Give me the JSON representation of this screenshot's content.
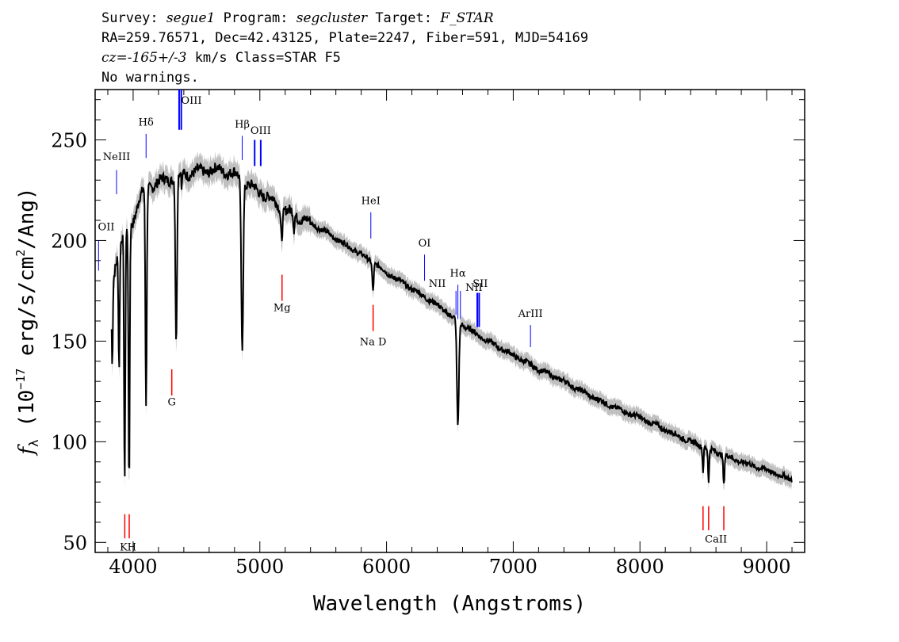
{
  "header": {
    "line1": {
      "survey_label": "Survey: ",
      "survey": "segue1",
      "program_label": " Program: ",
      "program": "segcluster",
      "target_label": " Target: ",
      "target": "F_STAR"
    },
    "line2": "RA=259.76571, Dec=42.43125, Plate=2247, Fiber=591, MJD=54169",
    "line3": {
      "cz": "cz=-165+/-3",
      "rest": " km/s Class=STAR F5"
    },
    "line4": "No warnings."
  },
  "chart_data": {
    "type": "line",
    "xlabel": "Wavelength (Angstroms)",
    "ylabel": {
      "f": "f",
      "sub": "λ",
      "pre": " (10",
      "exp": "−17",
      "post": " erg/s/cm",
      "exp2": "2",
      "end": "/Ang)"
    },
    "xlim": [
      3700,
      9300
    ],
    "ylim": [
      45,
      275
    ],
    "xticks": [
      4000,
      5000,
      6000,
      7000,
      8000,
      9000
    ],
    "yticks": [
      50,
      100,
      150,
      200,
      250
    ],
    "continuum": [
      [
        3830,
        176
      ],
      [
        3860,
        188
      ],
      [
        3890,
        198
      ],
      [
        3930,
        202
      ],
      [
        3970,
        206
      ],
      [
        4000,
        210
      ],
      [
        4050,
        221
      ],
      [
        4100,
        226
      ],
      [
        4200,
        229
      ],
      [
        4300,
        231
      ],
      [
        4400,
        233
      ],
      [
        4500,
        234
      ],
      [
        4600,
        235
      ],
      [
        4700,
        235
      ],
      [
        4800,
        233
      ],
      [
        4900,
        228
      ],
      [
        5000,
        224
      ],
      [
        5100,
        220
      ],
      [
        5200,
        215
      ],
      [
        5300,
        212
      ],
      [
        5500,
        205
      ],
      [
        5700,
        197
      ],
      [
        5900,
        189
      ],
      [
        6000,
        184
      ],
      [
        6200,
        176
      ],
      [
        6400,
        168
      ],
      [
        6500,
        163
      ],
      [
        6600,
        158
      ],
      [
        6700,
        154
      ],
      [
        6800,
        150
      ],
      [
        7000,
        143
      ],
      [
        7200,
        136
      ],
      [
        7400,
        130
      ],
      [
        7600,
        123
      ],
      [
        7800,
        117
      ],
      [
        8000,
        112
      ],
      [
        8200,
        106
      ],
      [
        8400,
        100
      ],
      [
        8600,
        95
      ],
      [
        8800,
        90
      ],
      [
        9000,
        86
      ],
      [
        9200,
        81
      ]
    ],
    "absorption": [
      {
        "x": 3835,
        "w": 6,
        "depth": 40
      },
      {
        "x": 3889,
        "w": 7,
        "depth": 60
      },
      {
        "x": 3933,
        "w": 7,
        "depth": 126
      },
      {
        "x": 3968,
        "w": 7,
        "depth": 128
      },
      {
        "x": 4102,
        "w": 8,
        "depth": 108
      },
      {
        "x": 4340,
        "w": 9,
        "depth": 84
      },
      {
        "x": 4384,
        "w": 4,
        "depth": 8
      },
      {
        "x": 4861,
        "w": 11,
        "depth": 82
      },
      {
        "x": 5172,
        "w": 10,
        "depth": 14
      },
      {
        "x": 5269,
        "w": 6,
        "depth": 8
      },
      {
        "x": 5893,
        "w": 8,
        "depth": 14
      },
      {
        "x": 6563,
        "w": 11,
        "depth": 52
      },
      {
        "x": 8498,
        "w": 6,
        "depth": 12
      },
      {
        "x": 8542,
        "w": 7,
        "depth": 16
      },
      {
        "x": 8662,
        "w": 7,
        "depth": 15
      }
    ],
    "emission_lines": [
      {
        "label": "OII",
        "x": 3727,
        "y1": 185,
        "y2": 200,
        "tx": 3727,
        "ty": 205,
        "color": "#0000ff",
        "double": false
      },
      {
        "label": "NeIII",
        "x": 3869,
        "y1": 223,
        "y2": 235,
        "tx": 3869,
        "ty": 240,
        "color": "#0000ff",
        "double": false
      },
      {
        "label": "Hδ",
        "x": 4102,
        "y1": 241,
        "y2": 253,
        "tx": 4102,
        "ty": 257,
        "color": "#0000ff",
        "double": false
      },
      {
        "label": "OIII",
        "x": 4363,
        "y1": 255,
        "y2": 275,
        "tx": 4460,
        "ty": 268,
        "color": "#0000ff",
        "double": true,
        "x2": 4380
      },
      {
        "label": "Hβ",
        "x": 4861,
        "y1": 240,
        "y2": 252,
        "tx": 4861,
        "ty": 256,
        "color": "#0000ff",
        "double": false
      },
      {
        "label": "OIII",
        "x": 4959,
        "y1": 237,
        "y2": 250,
        "tx": 5007,
        "ty": 253,
        "color": "#0000ff",
        "double": true,
        "x2": 5007
      },
      {
        "label": "HeI",
        "x": 5876,
        "y1": 201,
        "y2": 214,
        "tx": 5876,
        "ty": 218,
        "color": "#0000ff",
        "double": false
      },
      {
        "label": "OI",
        "x": 6300,
        "y1": 180,
        "y2": 193,
        "tx": 6300,
        "ty": 197,
        "color": "#0000ff",
        "double": false
      },
      {
        "label": "NII",
        "x": 6548,
        "y1": 163,
        "y2": 175,
        "tx": 6400,
        "ty": 177,
        "color": "#0000ff",
        "double": false
      },
      {
        "label": "Hα",
        "x": 6563,
        "y1": 161,
        "y2": 178,
        "tx": 6563,
        "ty": 182,
        "color": "#0000ff",
        "double": false
      },
      {
        "label": "NII",
        "x": 6583,
        "y1": 161,
        "y2": 175,
        "tx": 6690,
        "ty": 175,
        "color": "#0000ff",
        "double": false
      },
      {
        "label": "SII",
        "x": 6716,
        "y1": 157,
        "y2": 174,
        "tx": 6740,
        "ty": 177,
        "color": "#0000ff",
        "double": true,
        "x2": 6731
      },
      {
        "label": "ArIII",
        "x": 7136,
        "y1": 147,
        "y2": 158,
        "tx": 7136,
        "ty": 162,
        "color": "#0000ff",
        "double": false
      }
    ],
    "abs_markers": [
      {
        "label": "K",
        "x": 3934,
        "y1": 52,
        "y2": 64,
        "tx": 3925,
        "ty": 46,
        "color": "#ff0000"
      },
      {
        "label": "H",
        "x": 3969,
        "y1": 52,
        "y2": 64,
        "tx": 3990,
        "ty": 46,
        "color": "#ff0000"
      },
      {
        "label": "G",
        "x": 4305,
        "y1": 123,
        "y2": 136,
        "tx": 4305,
        "ty": 118,
        "color": "#ff0000"
      },
      {
        "label": "Mg",
        "x": 5175,
        "y1": 170,
        "y2": 183,
        "tx": 5175,
        "ty": 165,
        "color": "#ff0000"
      },
      {
        "label": "Na D",
        "x": 5894,
        "y1": 155,
        "y2": 168,
        "tx": 5894,
        "ty": 148,
        "color": "#ff0000"
      },
      {
        "label": "CaII",
        "x": 8498,
        "y1": 56,
        "y2": 68,
        "tx": 8600,
        "ty": 50,
        "color": "#ff0000"
      },
      {
        "label": "",
        "x": 8542,
        "y1": 56,
        "y2": 68,
        "color": "#ff0000"
      },
      {
        "label": "",
        "x": 8662,
        "y1": 56,
        "y2": 68,
        "color": "#ff0000"
      }
    ],
    "colors": {
      "spectrum": "#000000",
      "error": "#c0c0c0",
      "emission": "#0000ff",
      "absorption": "#ff0000"
    }
  }
}
